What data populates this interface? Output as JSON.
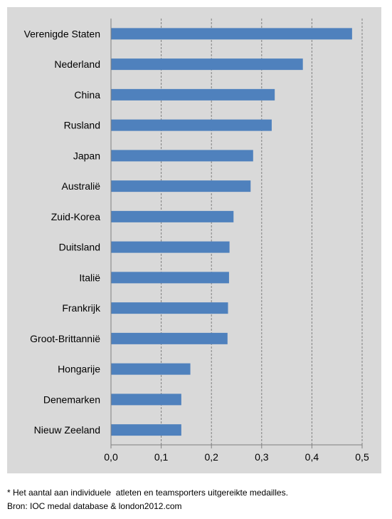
{
  "chart_data": {
    "type": "bar",
    "orientation": "horizontal",
    "categories": [
      "Verenigde Staten",
      "Nederland",
      "China",
      "Rusland",
      "Japan",
      "Australië",
      "Zuid-Korea",
      "Duitsland",
      "Italië",
      "Frankrijk",
      "Groot-Brittannië",
      "Hongarije",
      "Denemarken",
      "Nieuw Zeeland"
    ],
    "values": [
      0.48,
      0.382,
      0.326,
      0.32,
      0.283,
      0.278,
      0.244,
      0.236,
      0.235,
      0.233,
      0.232,
      0.158,
      0.14,
      0.14
    ],
    "xlim": [
      0,
      0.5
    ],
    "xticks": [
      "0,0",
      "0,1",
      "0,2",
      "0,3",
      "0,4",
      "0,5"
    ],
    "grid": "vertical dashed",
    "legend": "none",
    "colors": {
      "bar": "#4f81bd",
      "panel": "#d9d9d9",
      "grid": "#7f7f7f"
    }
  },
  "footnotes": {
    "line1": "* Het aantal aan individuele  atleten en teamsporters uitgereikte medailles.",
    "line2": "Bron: IOC medal database & london2012.com"
  }
}
